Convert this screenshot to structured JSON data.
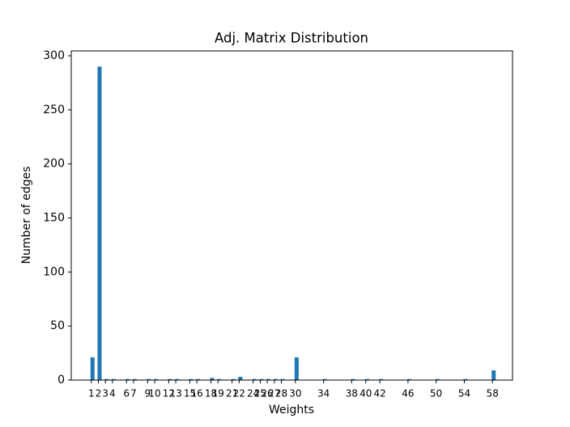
{
  "chart_data": {
    "type": "bar",
    "title": "Adj. Matrix Distribution",
    "x_label": "Weights",
    "y_label": "Number of edges",
    "x": [
      1,
      2,
      3,
      4,
      6,
      7,
      9,
      10,
      12,
      13,
      15,
      16,
      18,
      19,
      21,
      22,
      24,
      25,
      26,
      27,
      28,
      30,
      34,
      38,
      40,
      42,
      46,
      50,
      54,
      58
    ],
    "values": [
      21,
      290,
      1,
      1,
      1,
      1,
      1,
      1,
      1,
      1,
      1,
      1,
      2,
      1,
      1,
      3,
      1,
      1,
      1,
      1,
      1,
      21,
      1,
      1,
      1,
      1,
      1,
      1,
      1,
      9
    ],
    "color": "#1f77b4",
    "xlim": [
      -1.85,
      60.85
    ],
    "xticks": [
      1,
      2,
      3,
      4,
      6,
      7,
      9,
      10,
      12,
      13,
      15,
      16,
      18,
      19,
      21,
      22,
      24,
      25,
      26,
      27,
      28,
      30,
      34,
      38,
      40,
      42,
      46,
      50,
      54,
      58
    ],
    "ylim": [
      0,
      304.5
    ],
    "yticks": [
      0,
      50,
      100,
      150,
      200,
      250,
      300
    ],
    "grid": false
  }
}
